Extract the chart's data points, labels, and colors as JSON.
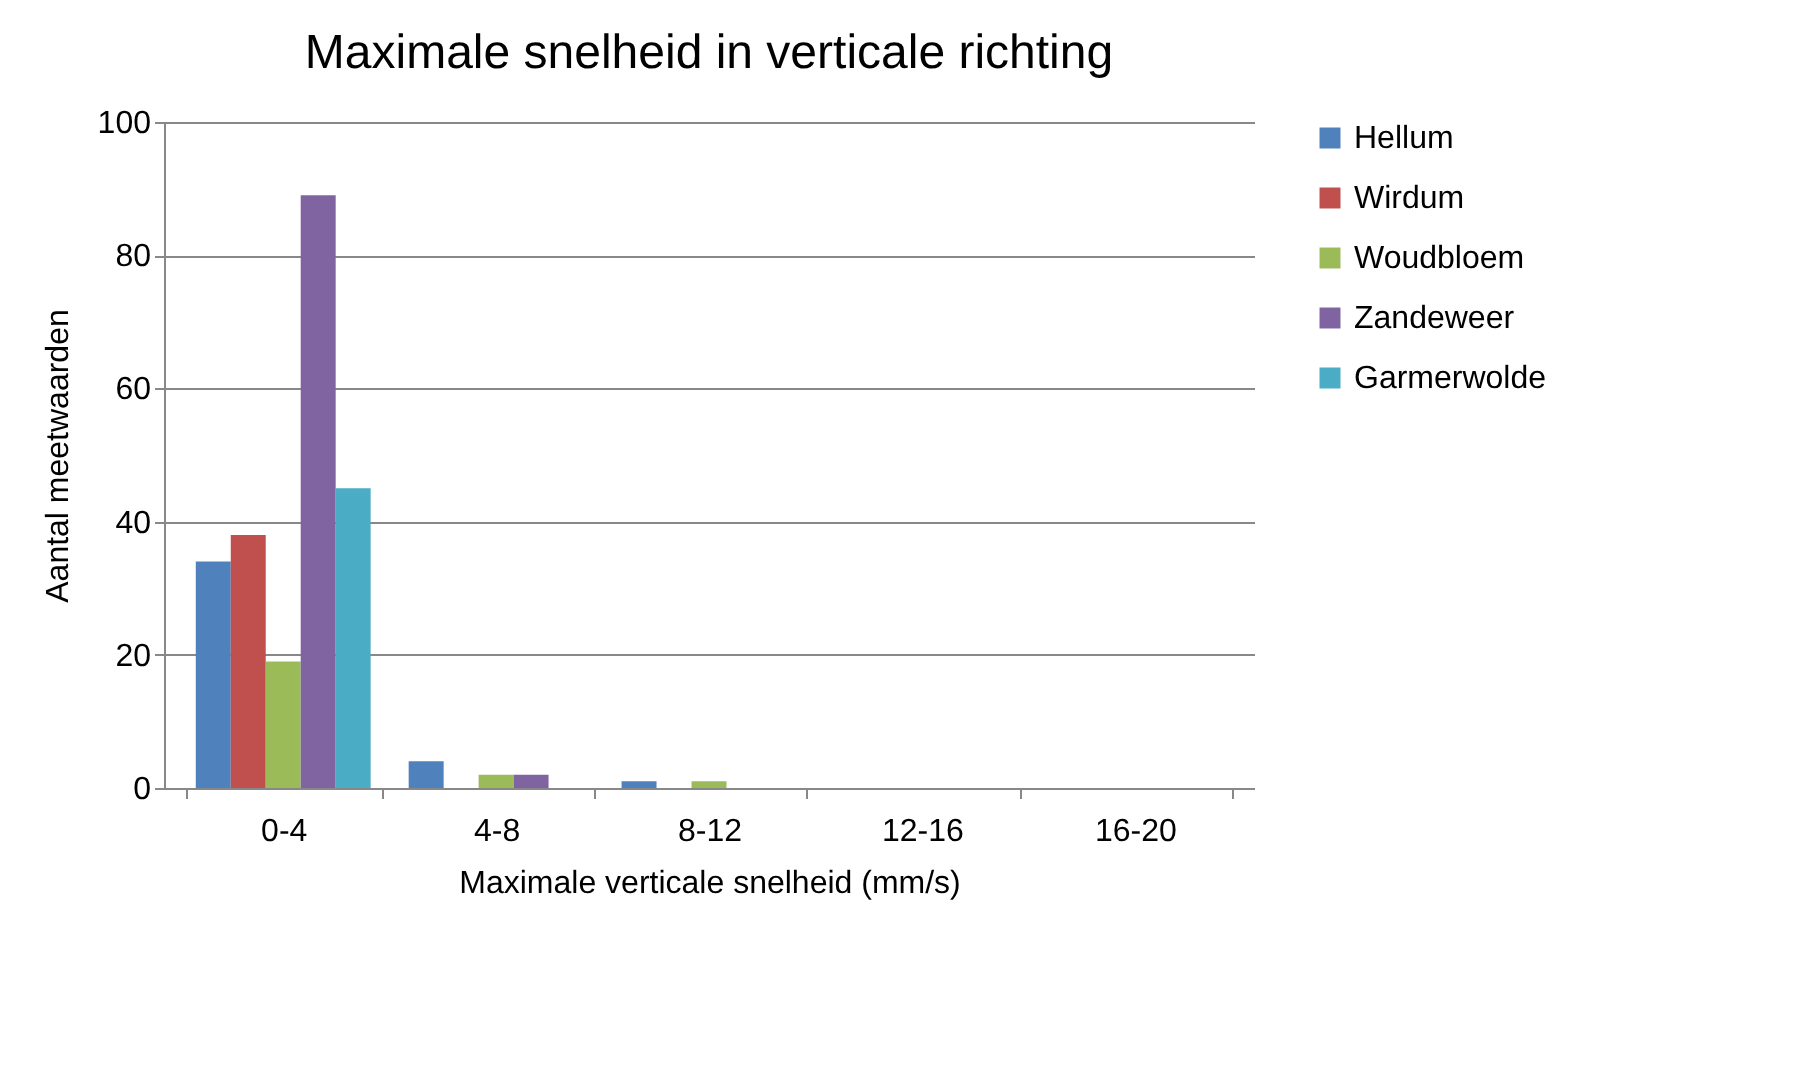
{
  "chart_data": {
    "type": "bar",
    "title": "Maximale snelheid in verticale richting",
    "xlabel": "Maximale verticale snelheid (mm/s)",
    "ylabel": "Aantal meetwaarden",
    "categories": [
      "0-4",
      "4-8",
      "8-12",
      "12-16",
      "16-20"
    ],
    "series": [
      {
        "name": "Hellum",
        "color": "#4f81bd",
        "values": [
          34,
          4,
          1,
          0,
          0
        ]
      },
      {
        "name": "Wirdum",
        "color": "#c0504d",
        "values": [
          38,
          0,
          0,
          0,
          0
        ]
      },
      {
        "name": "Woudbloem",
        "color": "#9bbb59",
        "values": [
          19,
          2,
          1,
          0,
          0
        ]
      },
      {
        "name": "Zandeweer",
        "color": "#8064a2",
        "values": [
          89,
          2,
          0,
          0,
          0
        ]
      },
      {
        "name": "Garmerwolde",
        "color": "#4bacc6",
        "values": [
          45,
          0,
          0,
          0,
          0
        ]
      }
    ],
    "ylim": [
      0,
      100
    ],
    "yticks": [
      0,
      20,
      40,
      60,
      80,
      100
    ],
    "grid": "y",
    "legend": "right"
  }
}
